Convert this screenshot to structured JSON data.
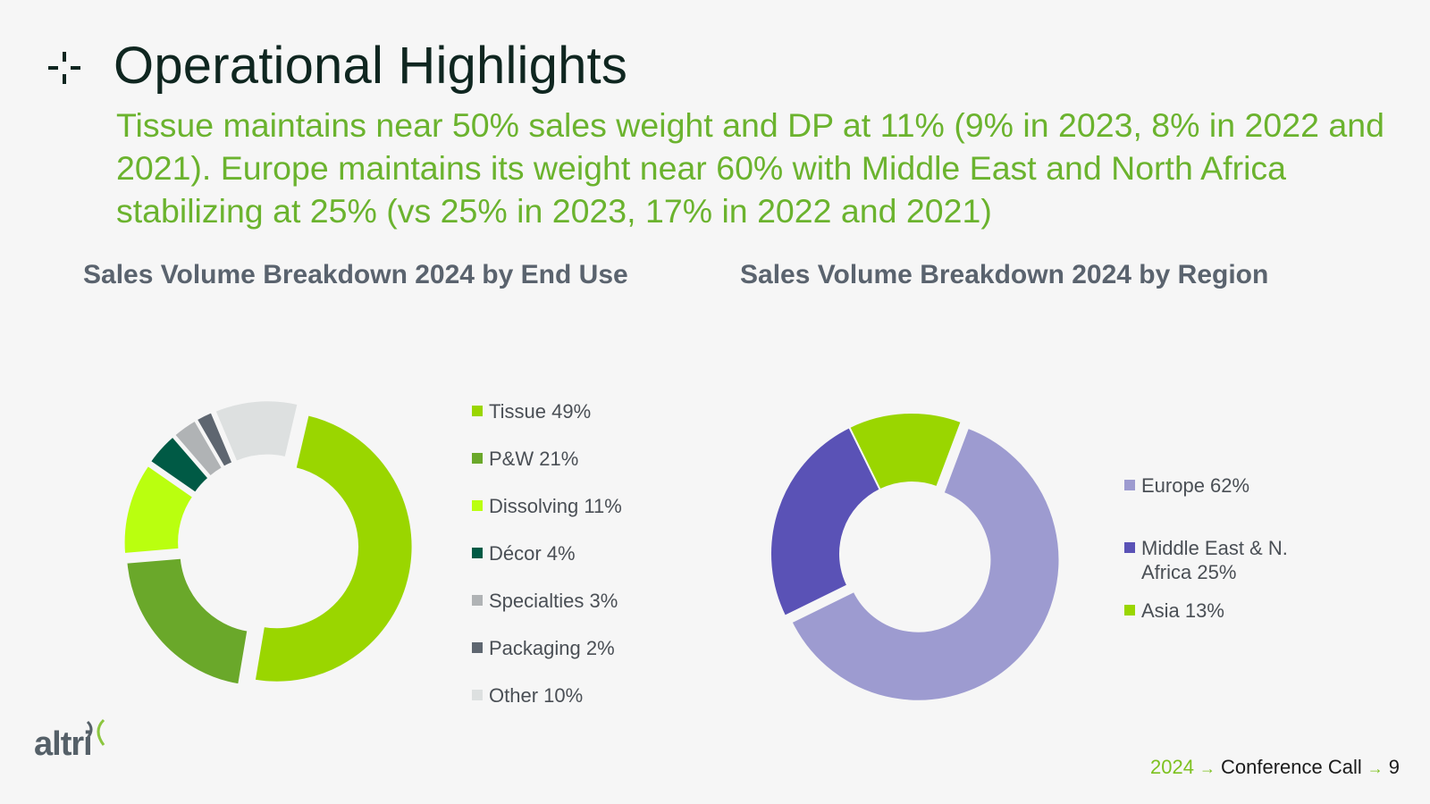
{
  "header": {
    "title": "Operational Highlights",
    "subtitle": "Tissue maintains near 50% sales weight and DP at 11% (9% in 2023, 8% in 2022 and 2021). Europe maintains its weight near 60% with Middle East and North Africa stabilizing at 25% (vs 25% in 2023, 17% in 2022 and 2021)"
  },
  "footer": {
    "year": "2024",
    "label": "Conference Call",
    "page": "9",
    "logo_text": "altri"
  },
  "chart_data": [
    {
      "type": "pie",
      "title": "Sales Volume Breakdown 2024 by End Use",
      "categories": [
        "Tissue",
        "P&W",
        "Dissolving",
        "Décor",
        "Specialties",
        "Packaging",
        "Other"
      ],
      "values": [
        49,
        21,
        11,
        4,
        3,
        2,
        10
      ],
      "legend_labels": [
        "Tissue 49%",
        "P&W 21%",
        "Dissolving 11%",
        "Décor 4%",
        "Specialties 3%",
        "Packaging 2%",
        "Other 10%"
      ],
      "colors": [
        "#9ad600",
        "#6aa82a",
        "#baff0f",
        "#005a45",
        "#b0b3b5",
        "#5e6670",
        "#dde0e0"
      ],
      "donut": true,
      "legend_position": "right"
    },
    {
      "type": "pie",
      "title": "Sales Volume Breakdown 2024 by Region",
      "categories": [
        "Europe",
        "Middle East & N. Africa",
        "Asia"
      ],
      "values": [
        62,
        25,
        13
      ],
      "legend_labels": [
        "Europe 62%",
        "Middle East & N.\nAfrica 25%",
        "Asia 13%"
      ],
      "colors": [
        "#9d9bd0",
        "#5a52b6",
        "#9ad600"
      ],
      "donut": true,
      "legend_position": "right"
    }
  ]
}
